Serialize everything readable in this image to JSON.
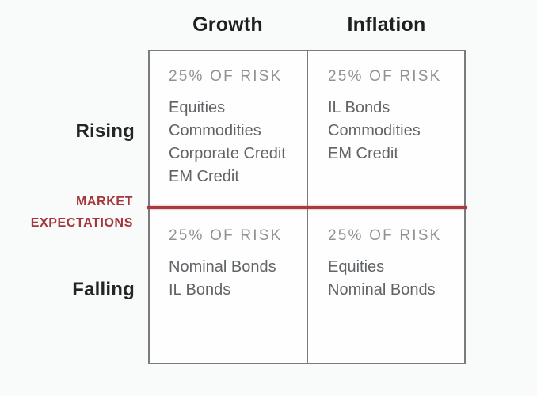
{
  "colors": {
    "accent_red": "#a93a3f",
    "header_text": "#1d1f21",
    "risk_label_gray": "#8f9294",
    "asset_text_gray": "#616467",
    "grid_border_gray": "#797c7f"
  },
  "matrix": {
    "column_headers": [
      {
        "label": "Growth"
      },
      {
        "label": "Inflation"
      }
    ],
    "row_labels": [
      {
        "label": "Rising"
      },
      {
        "label": "Falling"
      }
    ],
    "axis_label": {
      "line1": "MARKET",
      "line2": "EXPECTATIONS"
    },
    "quadrants": [
      {
        "name": "rising-growth",
        "risk_share": "25% OF RISK",
        "assets": [
          "Equities",
          "Commodities",
          "Corporate Credit",
          "EM Credit"
        ]
      },
      {
        "name": "rising-inflation",
        "risk_share": "25% OF RISK",
        "assets": [
          "IL Bonds",
          "Commodities",
          "EM Credit"
        ]
      },
      {
        "name": "falling-growth",
        "risk_share": "25% OF RISK",
        "assets": [
          "Nominal Bonds",
          "IL Bonds"
        ]
      },
      {
        "name": "falling-inflation",
        "risk_share": "25% OF RISK",
        "assets": [
          "Equities",
          "Nominal Bonds"
        ]
      }
    ]
  }
}
